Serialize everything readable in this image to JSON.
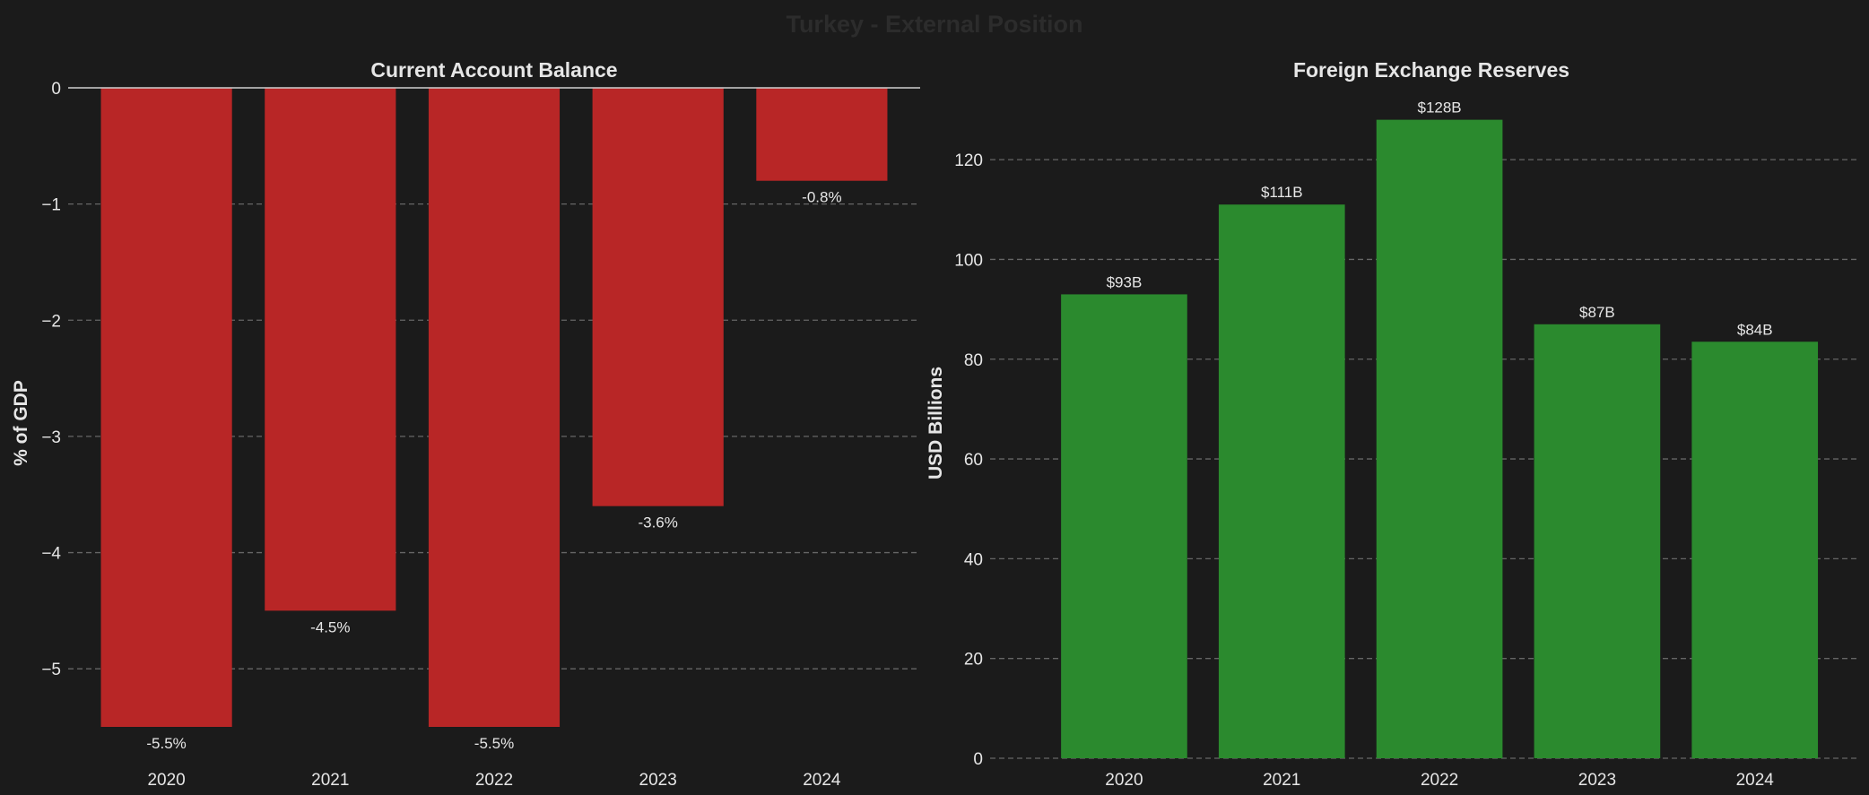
{
  "suptitle": "Turkey - External Position",
  "chart_data": [
    {
      "type": "bar",
      "title": "Current Account Balance",
      "xlabel": "",
      "ylabel": "% of GDP",
      "categories": [
        "2020",
        "2021",
        "2022",
        "2023",
        "2024"
      ],
      "values": [
        -5.5,
        -4.5,
        -5.5,
        -3.6,
        -0.8
      ],
      "data_labels": [
        "-5.5%",
        "-4.5%",
        "-5.5%",
        "-3.6%",
        "-0.8%"
      ],
      "yticks": [
        0,
        -1,
        -2,
        -3,
        -4,
        -5
      ],
      "ytick_labels": [
        "0",
        "−1",
        "−2",
        "−3",
        "−4",
        "−5"
      ],
      "ylim": [
        -5.77,
        0
      ],
      "grid": true,
      "color": "#b82626"
    },
    {
      "type": "bar",
      "title": "Foreign Exchange Reserves",
      "xlabel": "",
      "ylabel": "USD Billions",
      "categories": [
        "2020",
        "2021",
        "2022",
        "2023",
        "2024"
      ],
      "values": [
        93,
        111,
        128,
        87,
        83.5
      ],
      "data_labels": [
        "$93B",
        "$111B",
        "$128B",
        "$87B",
        "$84B"
      ],
      "yticks": [
        0,
        20,
        40,
        60,
        80,
        100,
        120
      ],
      "ytick_labels": [
        "0",
        "20",
        "40",
        "60",
        "80",
        "100",
        "120"
      ],
      "ylim": [
        0,
        134.4
      ],
      "grid": true,
      "color": "#2b8a2e"
    }
  ]
}
